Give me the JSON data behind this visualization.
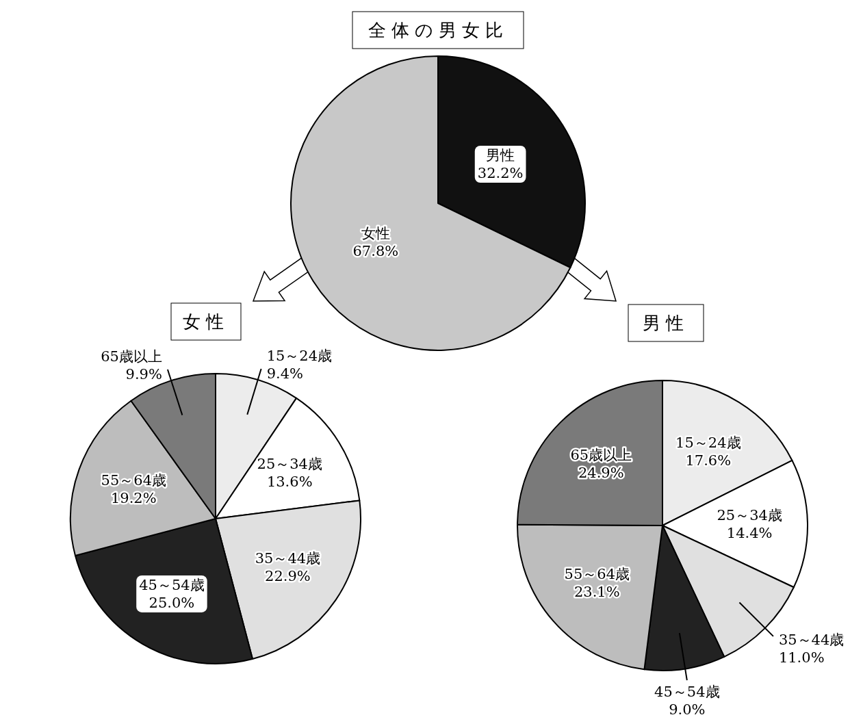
{
  "chart_data": [
    {
      "type": "pie",
      "title": "全体の男女比",
      "categories": [
        "男性",
        "女性"
      ],
      "values": [
        32.2,
        67.8
      ],
      "value_labels": [
        "32.2%",
        "67.8%"
      ],
      "colors": [
        "#111111",
        "#c8c8c8"
      ],
      "data_labels": true
    },
    {
      "type": "pie",
      "title": "女性",
      "categories": [
        "15～24歳",
        "25～34歳",
        "35～44歳",
        "45～54歳",
        "55～64歳",
        "65歳以上"
      ],
      "values": [
        9.4,
        13.6,
        22.9,
        25.0,
        19.2,
        9.9
      ],
      "value_labels": [
        "9.4%",
        "13.6%",
        "22.9%",
        "25.0%",
        "19.2%",
        "9.9%"
      ],
      "colors": [
        "#ececec",
        "#ffffff",
        "#e0e0e0",
        "#222222",
        "#bdbdbd",
        "#7a7a7a"
      ],
      "data_labels": true
    },
    {
      "type": "pie",
      "title": "男性",
      "categories": [
        "15～24歳",
        "25～34歳",
        "35～44歳",
        "45～54歳",
        "55～64歳",
        "65歳以上"
      ],
      "values": [
        17.6,
        14.4,
        11.0,
        9.0,
        23.1,
        24.9
      ],
      "value_labels": [
        "17.6%",
        "14.4%",
        "11.0%",
        "9.0%",
        "23.1%",
        "24.9%"
      ],
      "colors": [
        "#ececec",
        "#ffffff",
        "#e0e0e0",
        "#222222",
        "#bdbdbd",
        "#7a7a7a"
      ],
      "data_labels": true
    }
  ]
}
